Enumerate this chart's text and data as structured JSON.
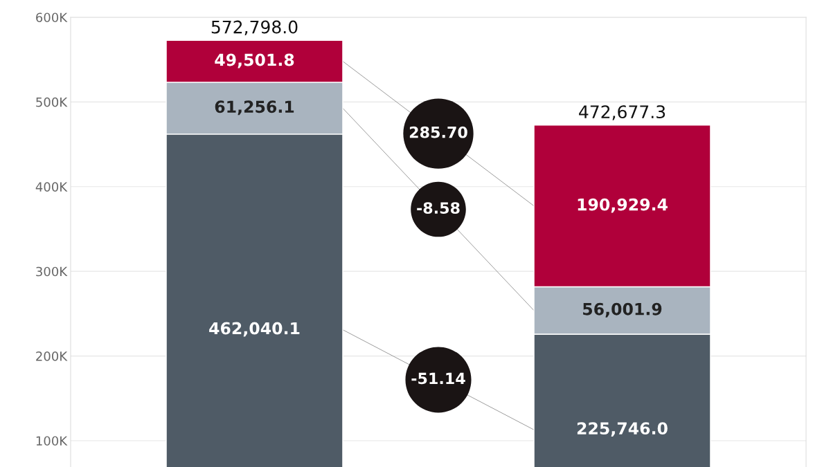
{
  "chart_data": {
    "type": "bar",
    "stacked": true,
    "categories": [
      null,
      null
    ],
    "series": [
      {
        "color": "#4f5b66",
        "values": [
          462040.1,
          225746.0
        ],
        "value_labels": [
          "462,040.1",
          "225,746.0"
        ]
      },
      {
        "color": "#a9b4bf",
        "values": [
          61256.1,
          56001.9
        ],
        "value_labels": [
          "61,256.1",
          "56,001.9"
        ]
      },
      {
        "color": "#b0003a",
        "values": [
          49501.8,
          190929.4
        ],
        "value_labels": [
          "49,501.8",
          "190,929.4"
        ]
      }
    ],
    "totals": [
      "572,798.0",
      "472,677.3"
    ],
    "annotations": [
      "-51.14",
      "-8.58",
      "285.70"
    ],
    "ylim": [
      0,
      600000
    ],
    "yticks": [
      {
        "value": 100000,
        "label": "100K"
      },
      {
        "value": 200000,
        "label": "200K"
      },
      {
        "value": 300000,
        "label": "300K"
      },
      {
        "value": 400000,
        "label": "400K"
      },
      {
        "value": 500000,
        "label": "500K"
      },
      {
        "value": 600000,
        "label": "600K"
      }
    ],
    "grid": "y",
    "legend": false
  }
}
